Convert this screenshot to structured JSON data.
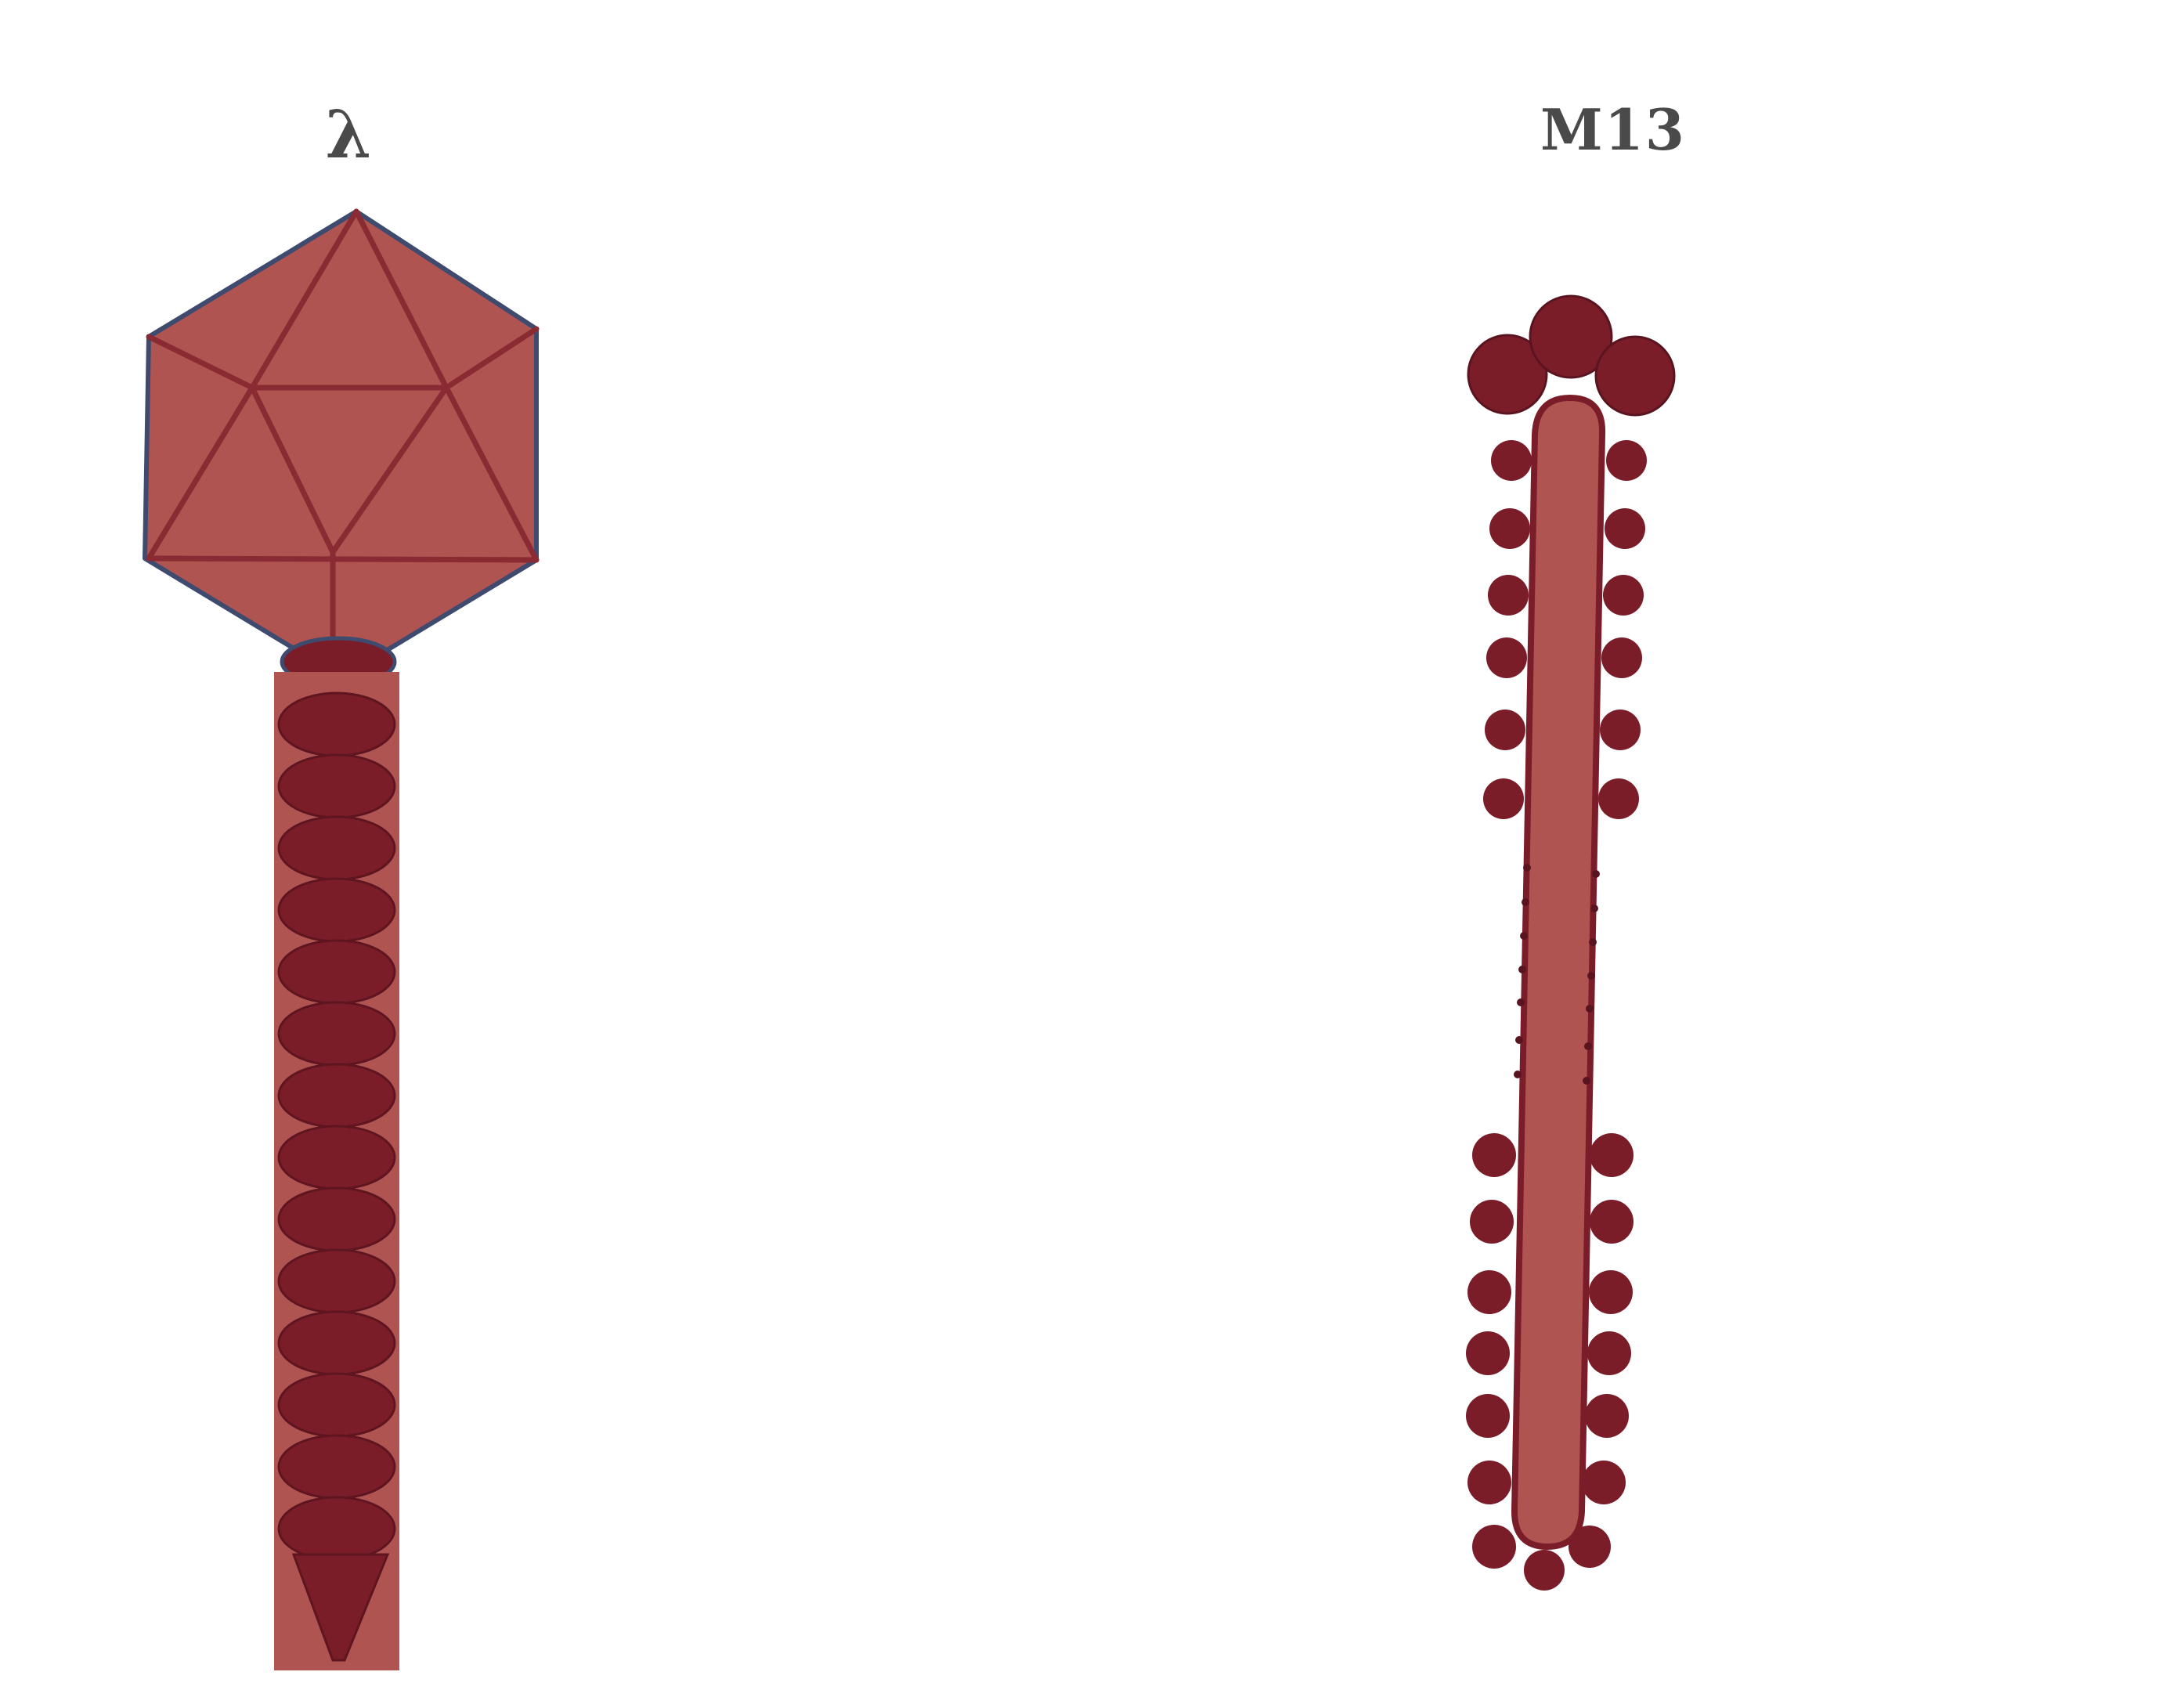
{
  "labels": {
    "lambda": "λ",
    "m13": "M13"
  },
  "colors": {
    "background": "#ffffff",
    "body_fill": "#b05452",
    "dark_fill": "#7b1d29",
    "outline": "#8a2a32",
    "edge_blue": "#3e4b6e",
    "label_color": "#4a4a4a"
  },
  "lambda_phage": {
    "tail_segments": 14
  },
  "m13_phage": {
    "top_cap_spheres": 3,
    "upper_side_protein_pairs": 6,
    "lower_side_protein_pairs": 6,
    "tip_spheres": 3
  }
}
